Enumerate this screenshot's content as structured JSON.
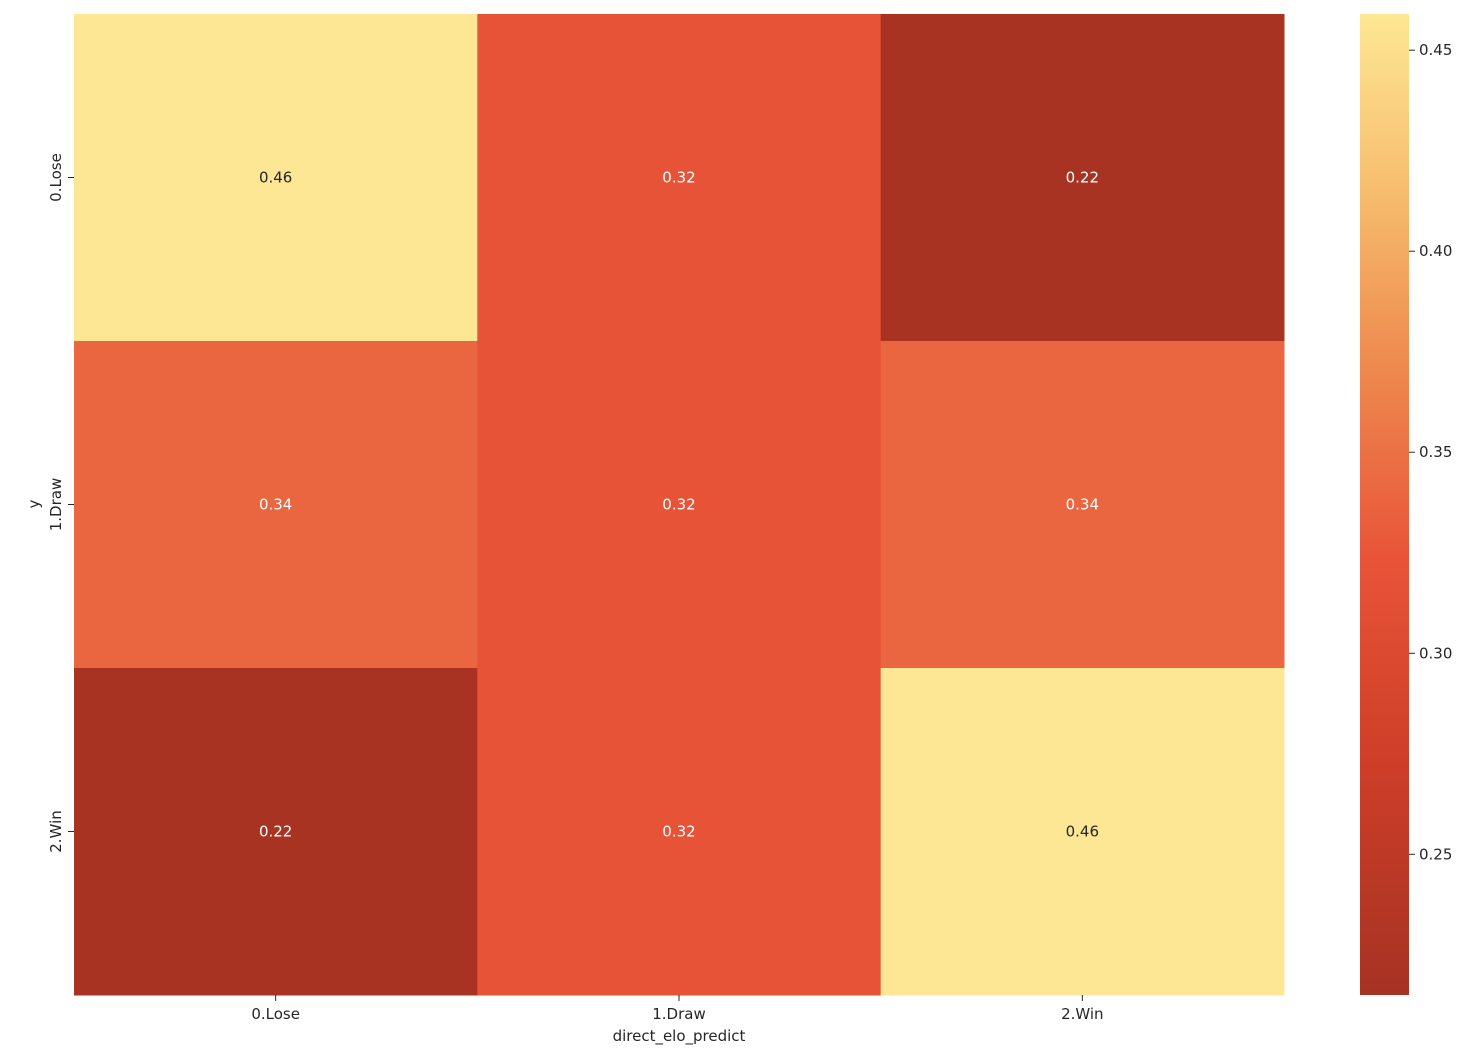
{
  "chart_data": {
    "type": "heatmap",
    "title": "",
    "xlabel": "direct_elo_predict",
    "ylabel": "y",
    "x_categories": [
      "0.Lose",
      "1.Draw",
      "2.Win"
    ],
    "y_categories": [
      "0.Lose",
      "1.Draw",
      "2.Win"
    ],
    "values": [
      [
        0.46,
        0.32,
        0.22
      ],
      [
        0.34,
        0.32,
        0.34
      ],
      [
        0.22,
        0.32,
        0.46
      ]
    ],
    "colorbar": {
      "min": 0.215,
      "max": 0.459,
      "ticks": [
        "0.25",
        "0.30",
        "0.35",
        "0.40",
        "0.45"
      ],
      "colormap": "YlOrRd_r"
    },
    "colors": {
      "low": "#a63223",
      "mid": "#e85639",
      "high": "#fde794"
    }
  }
}
